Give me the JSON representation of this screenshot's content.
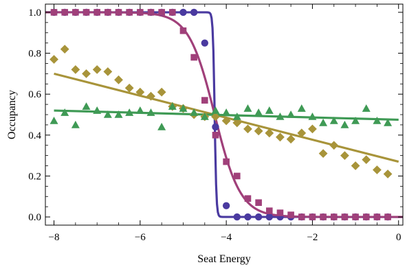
{
  "chart_data": {
    "type": "scatter",
    "title": "",
    "xlabel": "Seat Energy",
    "ylabel": "Occupancy",
    "xlim": [
      -8.2,
      0.1
    ],
    "ylim": [
      -0.04,
      1.04
    ],
    "x_ticks": [
      -8,
      -6,
      -4,
      -2,
      0
    ],
    "y_ticks": [
      0.0,
      0.2,
      0.4,
      0.6,
      0.8,
      1.0
    ],
    "x_tick_labels": [
      "−8",
      "−6",
      "−4",
      "−2",
      "0"
    ],
    "y_tick_labels": [
      "0.0",
      "0.2",
      "0.4",
      "0.6",
      "0.8",
      "1.0"
    ],
    "grid": false,
    "series": [
      {
        "marker": "circle",
        "color": "#4a3aa0",
        "x": [
          -8.0,
          -7.75,
          -7.5,
          -7.25,
          -7.0,
          -6.75,
          -6.5,
          -6.25,
          -6.0,
          -5.75,
          -5.5,
          -5.25,
          -5.0,
          -4.75,
          -4.5,
          -4.25,
          -4.0,
          -3.75,
          -3.5,
          -3.25,
          -3.0,
          -2.75,
          -2.5,
          -2.25,
          -2.0,
          -1.75,
          -1.5,
          -1.25,
          -1.0,
          -0.75,
          -0.5,
          -0.25
        ],
        "y": [
          1.0,
          1.0,
          1.0,
          1.0,
          1.0,
          1.0,
          1.0,
          1.0,
          1.0,
          1.0,
          1.0,
          1.0,
          1.0,
          1.0,
          0.85,
          0.44,
          0.055,
          0.0,
          0.0,
          0.0,
          0.0,
          0.0,
          0.0,
          0.0,
          0.0,
          0.0,
          0.0,
          0.0,
          0.0,
          0.0,
          0.0,
          0.0
        ],
        "fit": {
          "type": "step",
          "x0": -4.27,
          "width": 0.02,
          "color": "#4a3aa0"
        }
      },
      {
        "marker": "square",
        "color": "#a0407a",
        "x": [
          -8.0,
          -7.75,
          -7.5,
          -7.25,
          -7.0,
          -6.75,
          -6.5,
          -6.25,
          -6.0,
          -5.75,
          -5.5,
          -5.25,
          -5.0,
          -4.75,
          -4.5,
          -4.25,
          -4.0,
          -3.75,
          -3.5,
          -3.25,
          -3.0,
          -2.75,
          -2.5,
          -2.25,
          -2.0,
          -1.75,
          -1.5,
          -1.25,
          -1.0,
          -0.75,
          -0.5,
          -0.25
        ],
        "y": [
          1.0,
          1.0,
          1.0,
          1.0,
          1.0,
          1.0,
          1.0,
          1.0,
          1.0,
          1.0,
          1.0,
          1.0,
          0.91,
          0.78,
          0.57,
          0.4,
          0.27,
          0.2,
          0.09,
          0.07,
          0.03,
          0.02,
          0.01,
          0.0,
          0.0,
          0.0,
          0.0,
          0.0,
          0.0,
          0.0,
          0.0,
          0.0
        ],
        "fit": {
          "type": "step",
          "x0": -4.27,
          "width": 0.3,
          "color": "#a0407a"
        }
      },
      {
        "marker": "diamond",
        "color": "#a8943a",
        "x": [
          -8.0,
          -7.75,
          -7.5,
          -7.25,
          -7.0,
          -6.75,
          -6.5,
          -6.25,
          -6.0,
          -5.75,
          -5.5,
          -5.25,
          -5.0,
          -4.75,
          -4.5,
          -4.25,
          -4.0,
          -3.75,
          -3.5,
          -3.25,
          -3.0,
          -2.75,
          -2.5,
          -2.25,
          -2.0,
          -1.75,
          -1.5,
          -1.25,
          -1.0,
          -0.75,
          -0.5,
          -0.25
        ],
        "y": [
          0.77,
          0.82,
          0.72,
          0.7,
          0.72,
          0.71,
          0.67,
          0.63,
          0.61,
          0.59,
          0.61,
          0.54,
          0.53,
          0.5,
          0.49,
          0.49,
          0.47,
          0.46,
          0.43,
          0.42,
          0.41,
          0.39,
          0.38,
          0.41,
          0.43,
          0.31,
          0.35,
          0.3,
          0.25,
          0.28,
          0.23,
          0.21
        ],
        "fit": {
          "type": "line",
          "x": [
            -8.0,
            0.0
          ],
          "y": [
            0.7,
            0.27
          ],
          "color": "#a8943a"
        }
      },
      {
        "marker": "triangle",
        "color": "#3f9a55",
        "x": [
          -8.0,
          -7.75,
          -7.5,
          -7.25,
          -7.0,
          -6.75,
          -6.5,
          -6.25,
          -6.0,
          -5.75,
          -5.5,
          -5.25,
          -5.0,
          -4.75,
          -4.5,
          -4.25,
          -4.0,
          -3.75,
          -3.5,
          -3.25,
          -3.0,
          -2.75,
          -2.5,
          -2.25,
          -2.0,
          -1.75,
          -1.5,
          -1.25,
          -1.0,
          -0.75,
          -0.5,
          -0.25
        ],
        "y": [
          0.47,
          0.51,
          0.45,
          0.54,
          0.52,
          0.5,
          0.5,
          0.51,
          0.52,
          0.51,
          0.44,
          0.54,
          0.53,
          0.51,
          0.49,
          0.52,
          0.51,
          0.49,
          0.53,
          0.51,
          0.52,
          0.49,
          0.5,
          0.53,
          0.49,
          0.46,
          0.47,
          0.45,
          0.47,
          0.53,
          0.47,
          0.46
        ],
        "fit": {
          "type": "line",
          "x": [
            -8.0,
            0.0
          ],
          "y": [
            0.52,
            0.475
          ],
          "color": "#3f9a55"
        }
      }
    ]
  }
}
